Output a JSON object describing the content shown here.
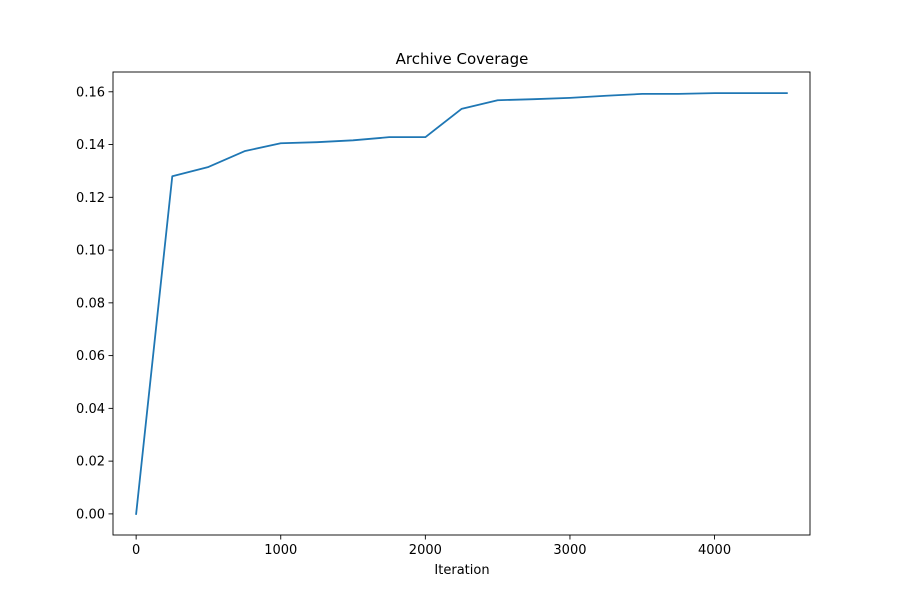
{
  "chart_data": {
    "type": "line",
    "title": "Archive Coverage",
    "xlabel": "Iteration",
    "ylabel": "",
    "xlim": [
      -160,
      4660
    ],
    "ylim": [
      -0.008,
      0.1675
    ],
    "xticks": [
      0,
      1000,
      2000,
      3000,
      4000
    ],
    "yticks": [
      0.0,
      0.02,
      0.04,
      0.06,
      0.08,
      0.1,
      0.12,
      0.14,
      0.16
    ],
    "grid": false,
    "series": [
      {
        "color": "#1f77b4",
        "x": [
          0,
          250,
          500,
          750,
          1000,
          1250,
          1500,
          1750,
          2000,
          2250,
          2500,
          2750,
          3000,
          3250,
          3500,
          3750,
          4000,
          4250,
          4500
        ],
        "y": [
          0.0,
          0.128,
          0.1315,
          0.1375,
          0.1405,
          0.1409,
          0.1416,
          0.1428,
          0.1428,
          0.1535,
          0.1568,
          0.1572,
          0.1577,
          0.1585,
          0.1592,
          0.1592,
          0.1595,
          0.1595,
          0.1595
        ]
      }
    ]
  }
}
